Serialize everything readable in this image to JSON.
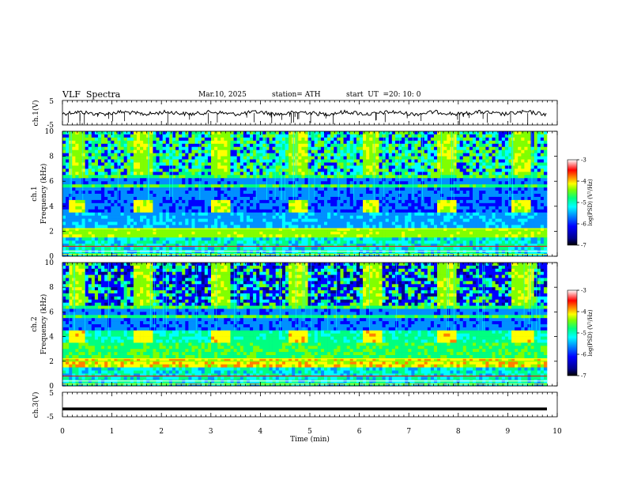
{
  "header": {
    "title": "VLF  Spectra",
    "date": "Mar.10, 2025",
    "station": "station= ATH",
    "start_label": "start  UT  =",
    "start_time": "20: 10: 0"
  },
  "chart_data": [
    {
      "type": "line",
      "name": "ch.1 waveform",
      "ylabel": "ch.1(V)",
      "ylim": [
        -5,
        5
      ],
      "ytick_labels": [
        "5",
        "-5"
      ],
      "xlim": [
        0,
        10
      ],
      "trace_color": "#000000",
      "description_of_values": "noisy waveform near 0 V with sharp negative spikes"
    },
    {
      "type": "heatmap",
      "name": "ch.1 spectrogram",
      "ylabel": "ch.1\nFrequency  (kHz)",
      "ylim": [
        0,
        10
      ],
      "ytick_labels": [
        "0",
        "2",
        "4",
        "6",
        "8",
        "10"
      ],
      "xlim": [
        0,
        9.8
      ],
      "bright_blocks_min": [
        [
          0.15,
          0.45
        ],
        [
          1.45,
          1.85
        ],
        [
          3.0,
          3.4
        ],
        [
          4.55,
          4.95
        ],
        [
          6.05,
          6.4
        ],
        [
          7.55,
          7.95
        ],
        [
          9.1,
          9.45
        ]
      ],
      "colorbar": {
        "label": "log(PSD) (V²/Hz)",
        "range": [
          -7,
          -3
        ],
        "tick_labels": [
          "-3",
          "-4",
          "-5",
          "-6",
          "-7"
        ]
      }
    },
    {
      "type": "heatmap",
      "name": "ch.2 spectrogram",
      "ylabel": "ch.2\nFrequency  (kHz)",
      "ylim": [
        0,
        10
      ],
      "ytick_labels": [
        "0",
        "2",
        "4",
        "6",
        "8",
        "10"
      ],
      "xlim": [
        0,
        9.8
      ],
      "bright_blocks_min": [
        [
          0.1,
          0.45
        ],
        [
          1.45,
          1.85
        ],
        [
          3.0,
          3.4
        ],
        [
          4.55,
          4.95
        ],
        [
          6.05,
          6.45
        ],
        [
          7.55,
          7.95
        ],
        [
          9.1,
          9.5
        ]
      ],
      "colorbar": {
        "label": "log(PSD) (V²/Hz)",
        "range": [
          -7,
          -3
        ],
        "tick_labels": [
          "-3",
          "-4",
          "-5",
          "-6",
          "-7"
        ]
      }
    },
    {
      "type": "line",
      "name": "ch.3 waveform",
      "ylabel": "ch.3(V)",
      "ylim": [
        -5,
        5
      ],
      "ytick_labels": [
        "5",
        "-5"
      ],
      "xlim": [
        0,
        10
      ],
      "xlabel": "Time  (min)",
      "xtick_labels": [
        "0",
        "1",
        "2",
        "3",
        "4",
        "5",
        "6",
        "7",
        "8",
        "9",
        "10"
      ],
      "trace_level_v": -1.8
    }
  ],
  "colormap": [
    "#000000",
    "#00008b",
    "#0000ff",
    "#0090ff",
    "#00ffff",
    "#00ff80",
    "#80ff00",
    "#ffff00",
    "#ff8000",
    "#ff0000",
    "#ffffff"
  ]
}
